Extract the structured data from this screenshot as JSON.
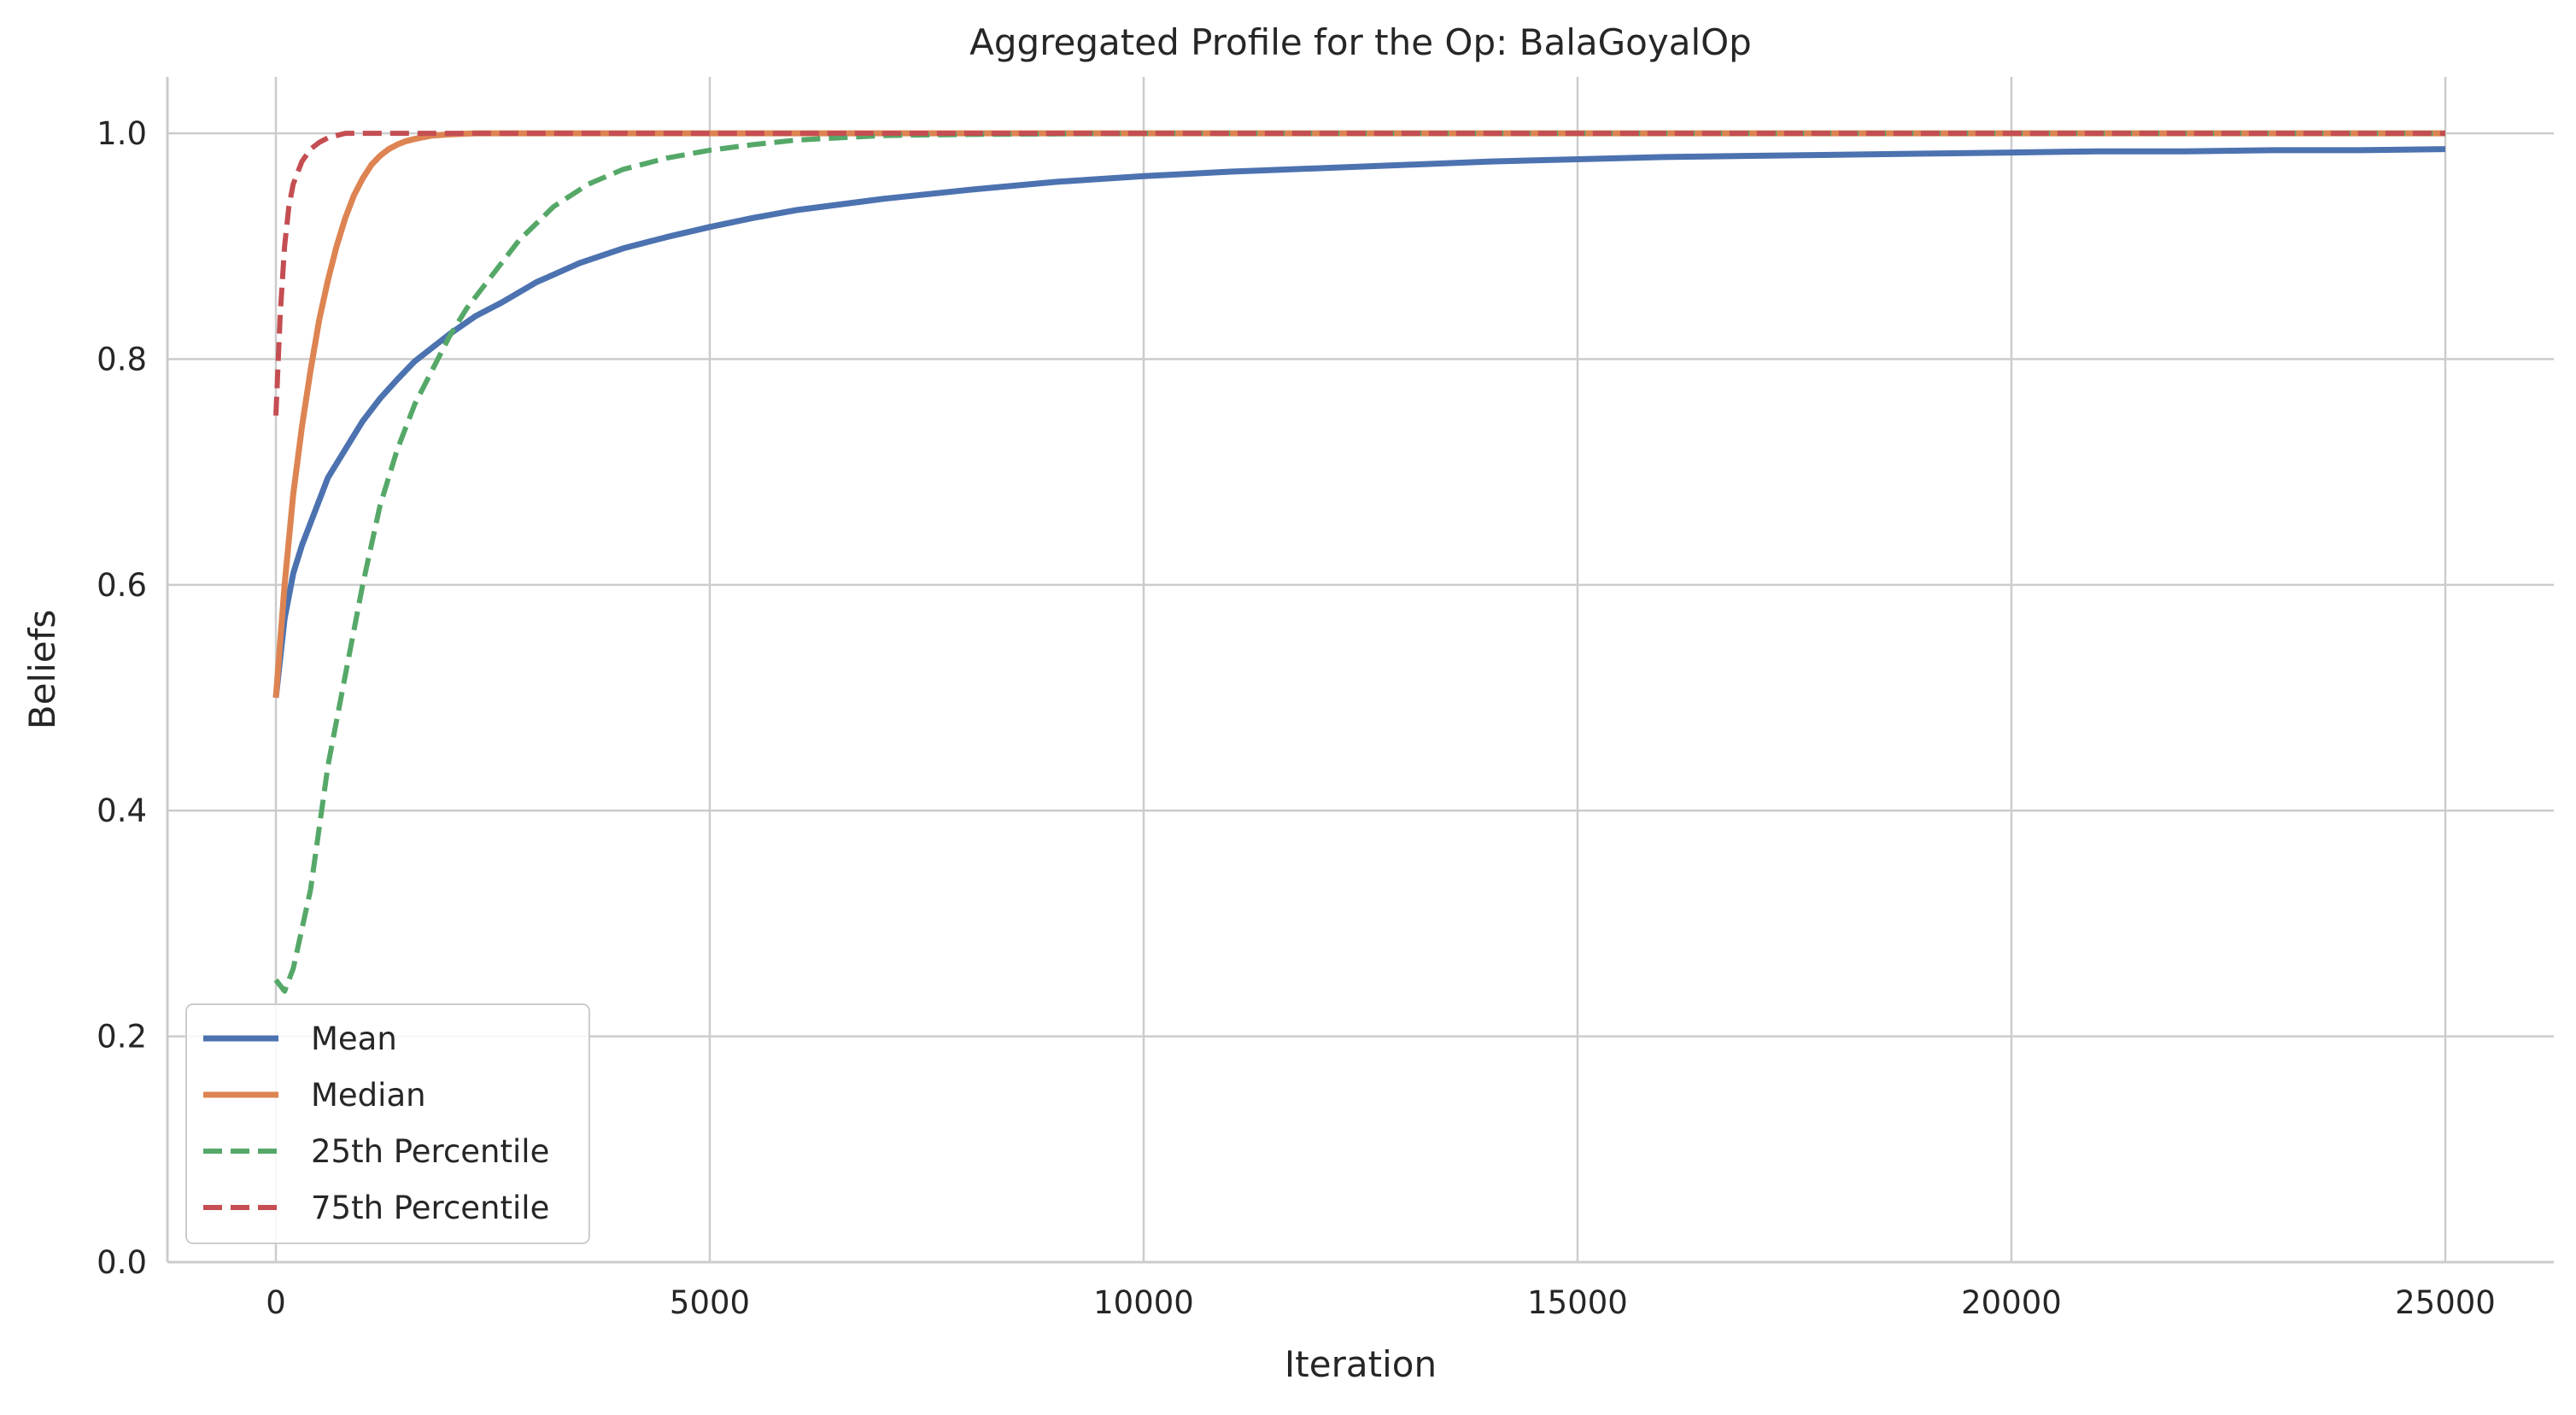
{
  "chart_data": {
    "type": "line",
    "title": "Aggregated Profile for the Op: BalaGoyalOp",
    "xlabel": "Iteration",
    "ylabel": "Beliefs",
    "xlim": [
      -1250,
      26250
    ],
    "ylim": [
      0.0,
      1.05
    ],
    "xticks": [
      0,
      5000,
      10000,
      15000,
      20000,
      25000
    ],
    "xtick_labels": [
      "0",
      "5000",
      "10000",
      "15000",
      "20000",
      "25000"
    ],
    "yticks": [
      0.0,
      0.2,
      0.4,
      0.6,
      0.8,
      1.0
    ],
    "ytick_labels": [
      "0.0",
      "0.2",
      "0.4",
      "0.6",
      "0.8",
      "1.0"
    ],
    "grid": true,
    "legend_position": "lower-left",
    "series": [
      {
        "name": "Mean",
        "color": "#4c72b0",
        "style": "solid",
        "x": [
          0,
          100,
          200,
          300,
          400,
          500,
          600,
          800,
          1000,
          1200,
          1400,
          1600,
          1800,
          2000,
          2300,
          2600,
          3000,
          3500,
          4000,
          4500,
          5000,
          5500,
          6000,
          7000,
          8000,
          9000,
          10000,
          11000,
          12000,
          13000,
          14000,
          15000,
          16000,
          17000,
          18000,
          19000,
          20000,
          21000,
          22000,
          23000,
          24000,
          25000
        ],
        "y": [
          0.5,
          0.57,
          0.61,
          0.635,
          0.655,
          0.675,
          0.695,
          0.72,
          0.745,
          0.765,
          0.782,
          0.798,
          0.81,
          0.822,
          0.838,
          0.85,
          0.868,
          0.885,
          0.898,
          0.908,
          0.917,
          0.925,
          0.932,
          0.942,
          0.95,
          0.957,
          0.962,
          0.966,
          0.969,
          0.972,
          0.975,
          0.977,
          0.979,
          0.98,
          0.981,
          0.982,
          0.983,
          0.984,
          0.984,
          0.985,
          0.985,
          0.986
        ]
      },
      {
        "name": "Median",
        "color": "#dd8452",
        "style": "solid",
        "x": [
          0,
          100,
          200,
          300,
          400,
          500,
          600,
          700,
          800,
          900,
          1000,
          1100,
          1200,
          1300,
          1400,
          1500,
          1600,
          1800,
          2000,
          2300,
          2600,
          3000,
          5000,
          10000,
          15000,
          20000,
          25000
        ],
        "y": [
          0.5,
          0.6,
          0.68,
          0.74,
          0.79,
          0.835,
          0.87,
          0.9,
          0.925,
          0.945,
          0.96,
          0.972,
          0.98,
          0.986,
          0.99,
          0.993,
          0.995,
          0.998,
          0.999,
          1.0,
          1.0,
          1.0,
          1.0,
          1.0,
          1.0,
          1.0,
          1.0
        ]
      },
      {
        "name": "25th Percentile",
        "color": "#55a868",
        "style": "dashed",
        "x": [
          0,
          100,
          200,
          400,
          600,
          800,
          1000,
          1200,
          1400,
          1600,
          1800,
          2000,
          2200,
          2500,
          2800,
          3200,
          3600,
          4000,
          4500,
          5000,
          5500,
          6000,
          7000,
          8000,
          10000,
          15000,
          20000,
          25000
        ],
        "y": [
          0.25,
          0.24,
          0.26,
          0.33,
          0.44,
          0.52,
          0.6,
          0.67,
          0.72,
          0.76,
          0.79,
          0.82,
          0.845,
          0.875,
          0.905,
          0.935,
          0.955,
          0.968,
          0.978,
          0.985,
          0.99,
          0.994,
          0.998,
          0.999,
          1.0,
          1.0,
          1.0,
          1.0
        ]
      },
      {
        "name": "75th Percentile",
        "color": "#c44e52",
        "style": "dashed",
        "x": [
          0,
          50,
          100,
          150,
          200,
          300,
          400,
          500,
          600,
          700,
          800,
          1000,
          5000,
          10000,
          15000,
          20000,
          25000
        ],
        "y": [
          0.75,
          0.84,
          0.9,
          0.935,
          0.955,
          0.975,
          0.986,
          0.992,
          0.996,
          0.998,
          1.0,
          1.0,
          1.0,
          1.0,
          1.0,
          1.0,
          1.0
        ]
      }
    ]
  }
}
